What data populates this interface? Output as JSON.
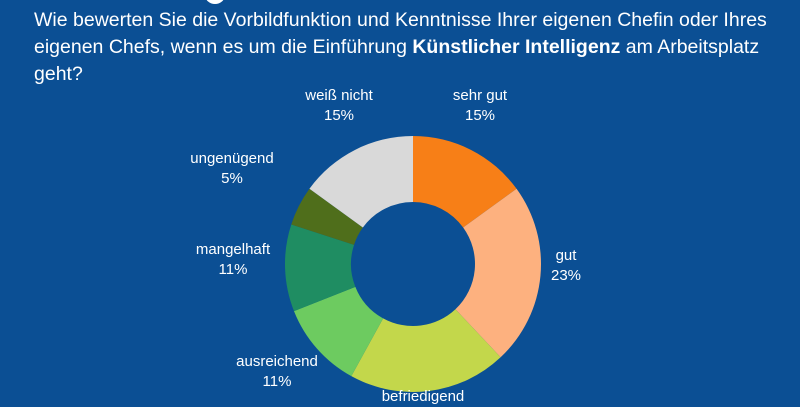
{
  "question": {
    "text_before": "Wie bewerten Sie die Vorbildfunktion und Kenntnisse Ihrer eigenen Chefin oder Ihres eigenen Chefs, wenn es um die Einführung ",
    "text_bold": "Künstlicher Intelligenz",
    "text_after": " am Arbeitsplatz geht?"
  },
  "chart_data": {
    "type": "pie",
    "donut": true,
    "start": "top",
    "direction": "clockwise",
    "slices": [
      {
        "label": "sehr gut",
        "value": 15,
        "value_label": "15%",
        "color": "#f77f17"
      },
      {
        "label": "gut",
        "value": 23,
        "value_label": "23%",
        "color": "#fdb17f"
      },
      {
        "label": "befriedigend",
        "value": 20,
        "value_label": "",
        "color": "#c3d74b"
      },
      {
        "label": "ausreichend",
        "value": 11,
        "value_label": "11%",
        "color": "#6dcb60"
      },
      {
        "label": "mangelhaft",
        "value": 11,
        "value_label": "11%",
        "color": "#1f8d62"
      },
      {
        "label": "ungenügend",
        "value": 5,
        "value_label": "5%",
        "color": "#4f6e1b"
      },
      {
        "label": "weiß nicht",
        "value": 15,
        "value_label": "15%",
        "color": "#d9d9d9"
      }
    ]
  },
  "colors": {
    "background": "#0b4f94",
    "text": "#ffffff"
  }
}
